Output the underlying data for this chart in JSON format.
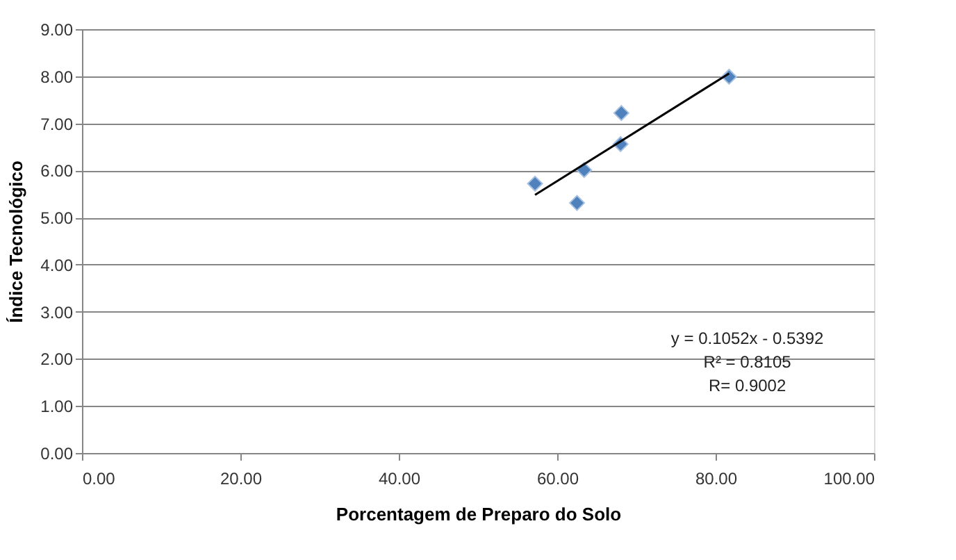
{
  "chart_data": {
    "type": "scatter",
    "xlabel": "Porcentagem de Preparo do Solo",
    "ylabel": "Índice Tecnológico",
    "series": [
      {
        "color": "#4f81bd",
        "marker": "diamond",
        "x": [
          57.2,
          62.5,
          63.4,
          68.0,
          68.1,
          81.7
        ],
        "values": [
          5.72,
          5.31,
          6.01,
          6.56,
          7.22,
          7.99
        ]
      },
      {
        "type": "line",
        "color": "#000000",
        "marker": "none",
        "x": [
          57.2,
          81.7
        ],
        "values": [
          5.48,
          8.06
        ]
      }
    ],
    "annotations": [
      "y = 0.1052x - 0.5392",
      "R² = 0.8105",
      "R= 0.9002"
    ],
    "xlim": [
      0,
      100
    ],
    "xticks": [
      {
        "value": 0,
        "label": "0.00"
      },
      {
        "value": 20,
        "label": "20.00"
      },
      {
        "value": 40,
        "label": "40.00"
      },
      {
        "value": 60,
        "label": "60.00"
      },
      {
        "value": 80,
        "label": "80.00"
      },
      {
        "value": 100,
        "label": "100.00"
      }
    ],
    "ylim": [
      0,
      9
    ],
    "yticks": [
      {
        "value": 0,
        "label": "0.00"
      },
      {
        "value": 1,
        "label": "1.00"
      },
      {
        "value": 2,
        "label": "2.00"
      },
      {
        "value": 3,
        "label": "3.00"
      },
      {
        "value": 4,
        "label": "4.00"
      },
      {
        "value": 5,
        "label": "5.00"
      },
      {
        "value": 6,
        "label": "6.00"
      },
      {
        "value": 7,
        "label": "7.00"
      },
      {
        "value": 8,
        "label": "8.00"
      },
      {
        "value": 9,
        "label": "9.00"
      }
    ],
    "grid": "y"
  }
}
